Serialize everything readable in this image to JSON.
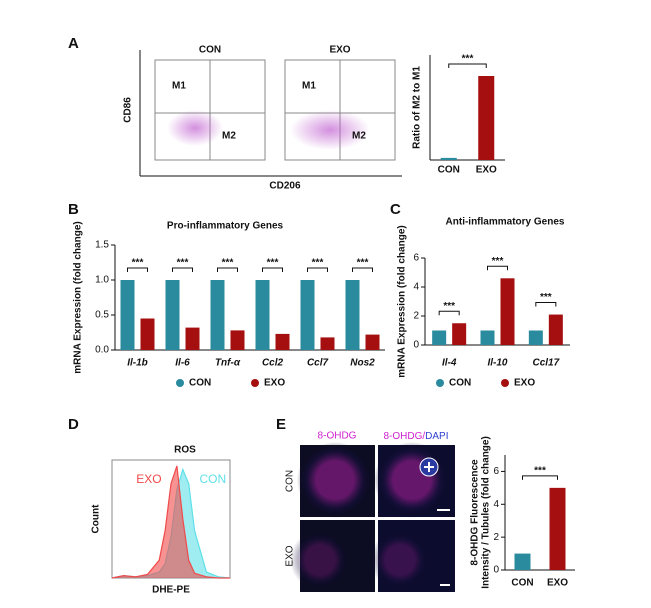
{
  "panels": {
    "A": "A",
    "B": "B",
    "C": "C",
    "D": "D",
    "E": "E"
  },
  "flow": {
    "titles": [
      "CON",
      "EXO"
    ],
    "gates": [
      "M1",
      "M2"
    ],
    "ylabel": "CD86",
    "xlabel": "CD206"
  },
  "microscopy": {
    "headers": [
      [
        "8-OHDG"
      ],
      [
        "8-OHDG/",
        "DAPI"
      ]
    ],
    "rows": [
      "CON",
      "EXO"
    ]
  },
  "chart_data": [
    {
      "type": "bar",
      "ylabel": "Ratio of M2 to M1",
      "categories": [
        "CON",
        "EXO"
      ],
      "values": [
        0.5,
        20
      ],
      "colors": [
        "#2a8a9e",
        "#a50f0f"
      ],
      "ylim": [
        0,
        25
      ],
      "significance": [
        "***"
      ]
    },
    {
      "type": "bar",
      "title": "Pro-inflammatory Genes",
      "ylabel": "mRNA Expression (fold change)",
      "categories": [
        "Il-1b",
        "Il-6",
        "Tnf-α",
        "Ccl2",
        "Ccl7",
        "Nos2"
      ],
      "series": [
        {
          "name": "CON",
          "color": "#2a8a9e",
          "values": [
            1,
            1,
            1,
            1,
            1,
            1
          ]
        },
        {
          "name": "EXO",
          "color": "#a50f0f",
          "values": [
            0.45,
            0.32,
            0.28,
            0.23,
            0.18,
            0.22
          ]
        }
      ],
      "ylim": [
        0,
        1.5
      ],
      "yticks": [
        {
          "value": 0,
          "label": "0.0"
        },
        {
          "value": 0.5,
          "label": "0.5"
        },
        {
          "value": 1,
          "label": "1.0"
        },
        {
          "value": 1.5,
          "label": "1.5"
        }
      ],
      "significance": [
        "***",
        "***",
        "***",
        "***",
        "***",
        "***"
      ]
    },
    {
      "type": "bar",
      "title": "Anti-inflammatory Genes",
      "ylabel": "mRNA Expression (fold change)",
      "categories": [
        "Il-4",
        "Il-10",
        "Ccl17"
      ],
      "series": [
        {
          "name": "CON",
          "color": "#2a8a9e",
          "values": [
            1,
            1,
            1
          ]
        },
        {
          "name": "EXO",
          "color": "#a50f0f",
          "values": [
            1.5,
            4.6,
            2.1
          ]
        }
      ],
      "ylim": [
        0,
        6
      ],
      "yticks": [
        0,
        2,
        4,
        6
      ],
      "significance": [
        "***",
        "***",
        "***"
      ]
    },
    {
      "type": "density",
      "title": "ROS",
      "xlabel": "DHE-PE",
      "ylabel": "Count",
      "x": [
        0,
        1,
        2,
        3,
        4,
        4.5,
        5,
        5.5,
        6,
        6.5,
        7,
        8,
        9,
        10
      ],
      "xlim": [
        0,
        10
      ],
      "ylim": [
        0,
        1
      ],
      "series": [
        {
          "name": "CON",
          "color": "#5fe0e8",
          "values": [
            0,
            0.02,
            0.01,
            0.02,
            0.05,
            0.12,
            0.35,
            0.75,
            0.92,
            0.8,
            0.4,
            0.05,
            0.01,
            0
          ]
        },
        {
          "name": "EXO",
          "color": "#f04a4a",
          "values": [
            0,
            0.02,
            0.01,
            0.03,
            0.15,
            0.4,
            0.8,
            0.95,
            0.5,
            0.15,
            0.04,
            0.01,
            0,
            0
          ]
        }
      ]
    },
    {
      "type": "bar",
      "ylabel": [
        "8-OHDG Fluorescence",
        "Intensity / Tubules (fold change)"
      ],
      "categories": [
        "CON",
        "EXO"
      ],
      "values": [
        1,
        5
      ],
      "colors": [
        "#2a8a9e",
        "#a50f0f"
      ],
      "ylim": [
        0,
        7
      ],
      "yticks": [
        0,
        2,
        4,
        6
      ],
      "significance": [
        "***"
      ]
    }
  ]
}
